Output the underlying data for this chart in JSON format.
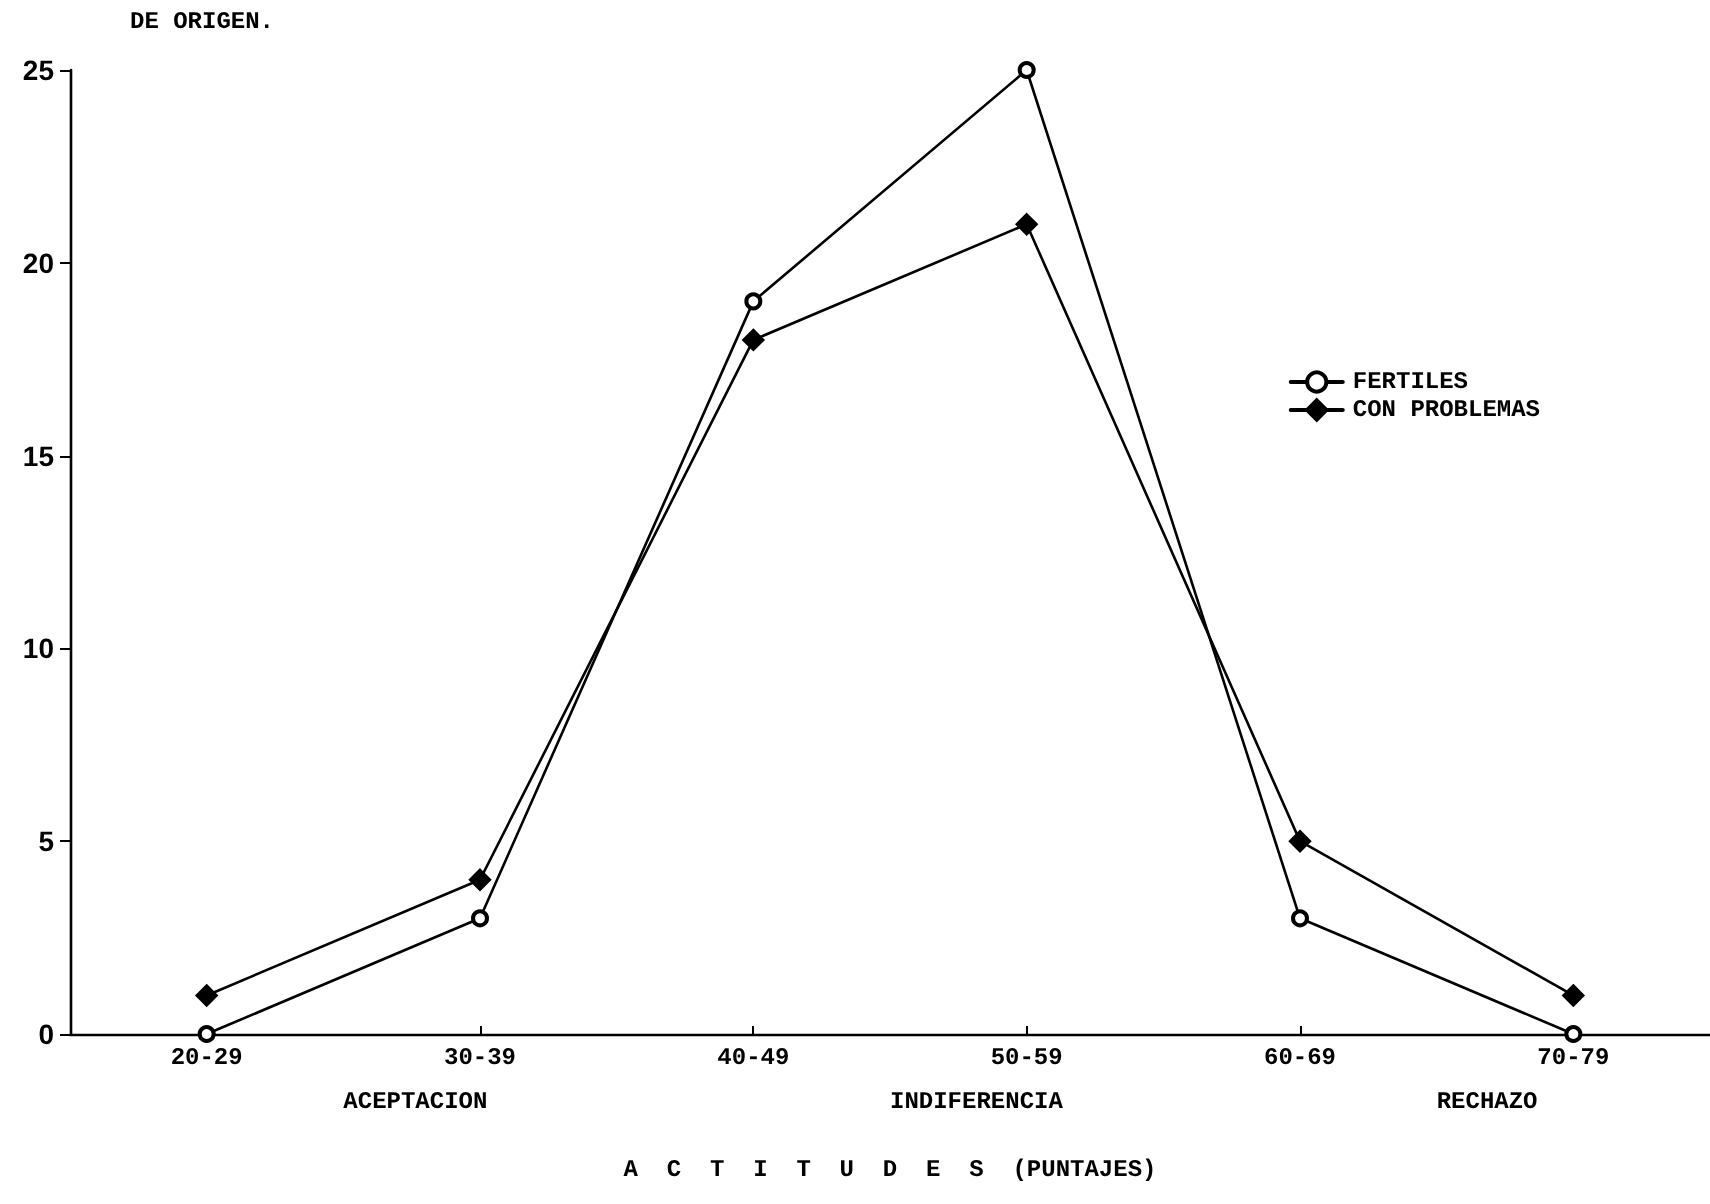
{
  "chart_data": {
    "type": "line",
    "title": "DE ORIGEN.",
    "xlabel": "A  C  T  I  T  U  D  E  S  (PUNTAJES)",
    "categories": [
      "20-29",
      "30-39",
      "40-49",
      "50-59",
      "60-69",
      "70-79"
    ],
    "series": [
      {
        "name": "FERTILES",
        "color": "#000000",
        "marker": "circle",
        "values": [
          0,
          3,
          19,
          25,
          3,
          0
        ]
      },
      {
        "name": "CON PROBLEMAS",
        "color": "#000000",
        "marker": "diamond",
        "values": [
          1,
          4,
          18,
          21,
          5,
          1
        ]
      }
    ],
    "ylim": [
      0,
      25
    ],
    "yticks": [
      0,
      5,
      10,
      15,
      20,
      25
    ],
    "grid": false,
    "legend": "right",
    "line_style": "solid",
    "annotations": [
      "ACEPTACION",
      "INDIFERENCIA",
      "RECHAZO"
    ]
  }
}
